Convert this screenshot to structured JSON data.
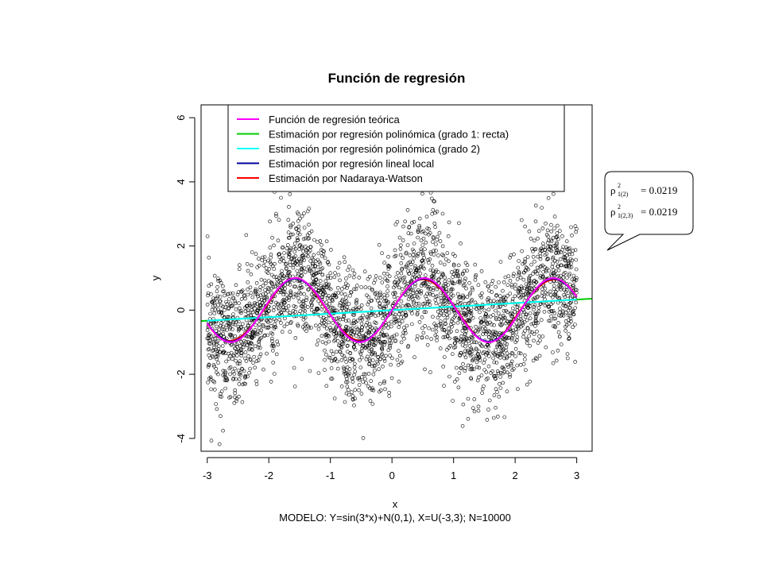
{
  "chart_data": {
    "type": "scatter",
    "title": "Función de regresión",
    "xlabel": "x",
    "ylabel": "y",
    "subtitle": "MODELO: Y=sin(3*x)+N(0,1), X=U(-3,3);  N=10000",
    "xlim": [
      -3.1,
      3.25
    ],
    "ylim": [
      -4.4,
      6.4
    ],
    "x_ticks": [
      -3,
      -2,
      -1,
      0,
      1,
      2,
      3
    ],
    "y_ticks": [
      -4,
      -2,
      0,
      2,
      4,
      6
    ],
    "grid": false,
    "legend_position": "top",
    "scatter": {
      "model": "y = sin(3x) + N(0,1), x ~ U(-3,3)",
      "n": 10000,
      "marker": "open-circle"
    },
    "series": [
      {
        "name": "Función de regresión teórica",
        "color": "#ff00ff",
        "kind": "sin3x"
      },
      {
        "name": "Estimación por regresión polinómica (grado 1: recta)",
        "color": "#00cc00",
        "kind": "linear",
        "intercept": 0.0,
        "slope": 0.11
      },
      {
        "name": "Estimación por regresión polinómica (grado 2)",
        "color": "#00ffff",
        "kind": "linear",
        "intercept": 0.0,
        "slope": 0.11
      },
      {
        "name": "Estimación por regresión lineal local",
        "color": "#000099",
        "kind": "smooth"
      },
      {
        "name": "Estimación por Nadaraya-Watson",
        "color": "#ff0000",
        "kind": "smooth"
      }
    ],
    "annotation": {
      "lines": [
        {
          "symbol": "ρ",
          "sup": "2",
          "sub": "1(2)",
          "text": "= 0.0219"
        },
        {
          "symbol": "ρ",
          "sup": "2",
          "sub": "1(2,3)",
          "text": "= 0.0219"
        }
      ]
    }
  }
}
